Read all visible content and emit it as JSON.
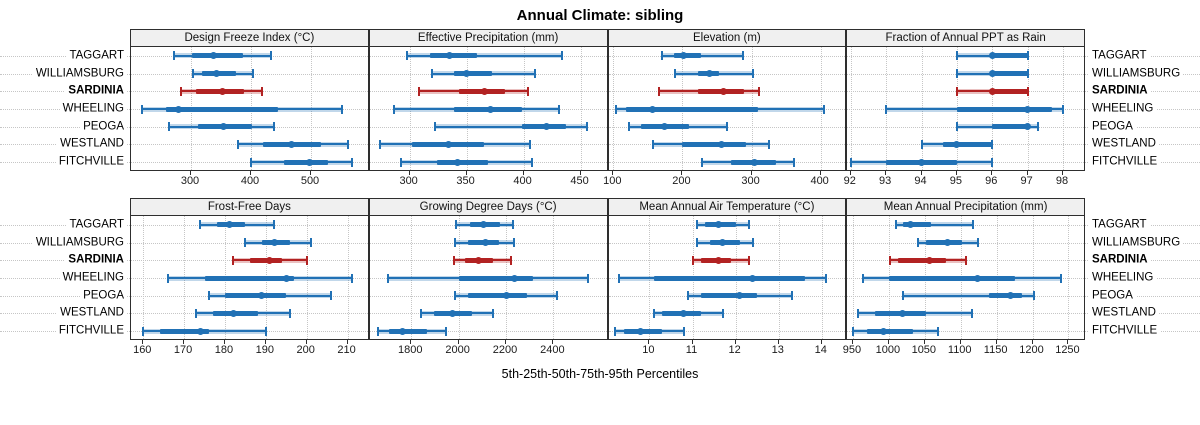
{
  "title": "Annual Climate: sibling",
  "caption": "5th-25th-50th-75th-95th Percentiles",
  "percentiles_order": [
    "p5",
    "p25",
    "p50",
    "p75",
    "p95"
  ],
  "sites": [
    {
      "label": "TAGGART",
      "bold": false
    },
    {
      "label": "WILLIAMSBURG",
      "bold": false
    },
    {
      "label": "SARDINIA",
      "bold": true
    },
    {
      "label": "WHEELING",
      "bold": false
    },
    {
      "label": "PEOGA",
      "bold": false
    },
    {
      "label": "WESTLAND",
      "bold": false
    },
    {
      "label": "FITCHVILLE",
      "bold": false
    }
  ],
  "colors": {
    "normal": "#2171b5",
    "normal_light": "rgba(33,113,181,0.28)",
    "highlight": "#b22222",
    "highlight_light": "rgba(178,34,34,0.28)",
    "header_bg": "#f0f0f0",
    "border": "#2e2e2e",
    "grid": "#c6c6c6"
  },
  "chart_data": [
    {
      "type": "percentile-interval",
      "title": "Design Freeze Index (°C)",
      "panel_row": 0,
      "xlim": [
        200,
        595
      ],
      "ticks": [
        300,
        400,
        500
      ],
      "series": [
        {
          "name": "TAGGART",
          "values": [
            272,
            302,
            338,
            387,
            433
          ]
        },
        {
          "name": "WILLIAMSBURG",
          "values": [
            303,
            318,
            342,
            375,
            404
          ]
        },
        {
          "name": "SARDINIA",
          "values": [
            284,
            309,
            353,
            389,
            418
          ]
        },
        {
          "name": "WHEELING",
          "values": [
            218,
            258,
            279,
            445,
            552
          ]
        },
        {
          "name": "PEOGA",
          "values": [
            264,
            312,
            354,
            402,
            439
          ]
        },
        {
          "name": "WESTLAND",
          "values": [
            378,
            420,
            468,
            516,
            561
          ]
        },
        {
          "name": "FITCHVILLE",
          "values": [
            400,
            455,
            497,
            528,
            568
          ]
        }
      ]
    },
    {
      "type": "percentile-interval",
      "title": "Effective Precipitation (mm)",
      "panel_row": 0,
      "xlim": [
        265,
        473
      ],
      "ticks": [
        300,
        350,
        400,
        450
      ],
      "series": [
        {
          "name": "TAGGART",
          "values": [
            298,
            318,
            335,
            359,
            434
          ]
        },
        {
          "name": "WILLIAMSBURG",
          "values": [
            320,
            339,
            350,
            372,
            410
          ]
        },
        {
          "name": "SARDINIA",
          "values": [
            308,
            343,
            366,
            384,
            404
          ]
        },
        {
          "name": "WHEELING",
          "values": [
            286,
            339,
            371,
            399,
            431
          ]
        },
        {
          "name": "PEOGA",
          "values": [
            322,
            399,
            420,
            437,
            456
          ]
        },
        {
          "name": "WESTLAND",
          "values": [
            274,
            302,
            334,
            365,
            406
          ]
        },
        {
          "name": "FITCHVILLE",
          "values": [
            292,
            324,
            342,
            369,
            407
          ]
        }
      ]
    },
    {
      "type": "percentile-interval",
      "title": "Elevation (m)",
      "panel_row": 0,
      "xlim": [
        93,
        436
      ],
      "ticks": [
        100,
        200,
        300,
        400
      ],
      "series": [
        {
          "name": "TAGGART",
          "values": [
            171,
            188,
            201,
            227,
            288
          ]
        },
        {
          "name": "WILLIAMSBURG",
          "values": [
            189,
            222,
            239,
            253,
            302
          ]
        },
        {
          "name": "SARDINIA",
          "values": [
            166,
            223,
            260,
            289,
            311
          ]
        },
        {
          "name": "WHEELING",
          "values": [
            104,
            118,
            157,
            310,
            405
          ]
        },
        {
          "name": "PEOGA",
          "values": [
            122,
            140,
            174,
            210,
            264
          ]
        },
        {
          "name": "WESTLAND",
          "values": [
            157,
            200,
            257,
            292,
            325
          ]
        },
        {
          "name": "FITCHVILLE",
          "values": [
            228,
            270,
            305,
            335,
            361
          ]
        }
      ]
    },
    {
      "type": "percentile-interval",
      "title": "Fraction of Annual PPT as Rain",
      "panel_row": 0,
      "xlim": [
        91.9,
        98.6
      ],
      "ticks": [
        92,
        93,
        94,
        95,
        96,
        97,
        98
      ],
      "series": [
        {
          "name": "TAGGART",
          "values": [
            95,
            96,
            96,
            97,
            97
          ]
        },
        {
          "name": "WILLIAMSBURG",
          "values": [
            95,
            96,
            96,
            97,
            97
          ]
        },
        {
          "name": "SARDINIA",
          "values": [
            95,
            96,
            96,
            97,
            97
          ]
        },
        {
          "name": "WHEELING",
          "values": [
            93,
            95,
            97,
            97.7,
            98
          ]
        },
        {
          "name": "PEOGA",
          "values": [
            95,
            96,
            97,
            97,
            97.3
          ]
        },
        {
          "name": "WESTLAND",
          "values": [
            94,
            94.6,
            95,
            96,
            96
          ]
        },
        {
          "name": "FITCHVILLE",
          "values": [
            92,
            93,
            94,
            95,
            96
          ]
        }
      ]
    },
    {
      "type": "percentile-interval",
      "title": "Frost-Free Days",
      "panel_row": 1,
      "xlim": [
        157,
        215
      ],
      "ticks": [
        160,
        170,
        180,
        190,
        200,
        210
      ],
      "series": [
        {
          "name": "TAGGART",
          "values": [
            174,
            178,
            181,
            185,
            192
          ]
        },
        {
          "name": "WILLIAMSBURG",
          "values": [
            185,
            189,
            192,
            196,
            201
          ]
        },
        {
          "name": "SARDINIA",
          "values": [
            182,
            186,
            191,
            194,
            200
          ]
        },
        {
          "name": "WHEELING",
          "values": [
            166,
            175,
            195,
            197,
            211
          ]
        },
        {
          "name": "PEOGA",
          "values": [
            176,
            180,
            189,
            195,
            206
          ]
        },
        {
          "name": "WESTLAND",
          "values": [
            173,
            177,
            182,
            188,
            196
          ]
        },
        {
          "name": "FITCHVILLE",
          "values": [
            160,
            164,
            174,
            176,
            190
          ]
        }
      ]
    },
    {
      "type": "percentile-interval",
      "title": "Growing Degree Days (°C)",
      "panel_row": 1,
      "xlim": [
        1625,
        2625
      ],
      "ticks": [
        1800,
        2000,
        2200,
        2400
      ],
      "series": [
        {
          "name": "TAGGART",
          "values": [
            1990,
            2050,
            2105,
            2175,
            2230
          ]
        },
        {
          "name": "WILLIAMSBURG",
          "values": [
            1985,
            2040,
            2115,
            2170,
            2235
          ]
        },
        {
          "name": "SARDINIA",
          "values": [
            1980,
            2025,
            2085,
            2145,
            2220
          ]
        },
        {
          "name": "WHEELING",
          "values": [
            1700,
            2000,
            2235,
            2315,
            2545
          ]
        },
        {
          "name": "PEOGA",
          "values": [
            1985,
            2040,
            2200,
            2290,
            2415
          ]
        },
        {
          "name": "WESTLAND",
          "values": [
            1840,
            1895,
            1975,
            2055,
            2145
          ]
        },
        {
          "name": "FITCHVILLE",
          "values": [
            1660,
            1705,
            1765,
            1865,
            1945
          ]
        }
      ]
    },
    {
      "type": "percentile-interval",
      "title": "Mean Annual Air Temperature (°C)",
      "panel_row": 1,
      "xlim": [
        9.05,
        14.55
      ],
      "ticks": [
        10,
        11,
        12,
        13,
        14
      ],
      "series": [
        {
          "name": "TAGGART",
          "values": [
            11.1,
            11.3,
            11.6,
            12.0,
            12.3
          ]
        },
        {
          "name": "WILLIAMSBURG",
          "values": [
            11.1,
            11.4,
            11.7,
            12.1,
            12.4
          ]
        },
        {
          "name": "SARDINIA",
          "values": [
            11.0,
            11.2,
            11.6,
            11.9,
            12.3
          ]
        },
        {
          "name": "WHEELING",
          "values": [
            9.3,
            10.1,
            12.4,
            13.6,
            14.1
          ]
        },
        {
          "name": "PEOGA",
          "values": [
            10.9,
            11.2,
            12.1,
            12.5,
            13.3
          ]
        },
        {
          "name": "WESTLAND",
          "values": [
            10.1,
            10.3,
            10.8,
            11.2,
            11.7
          ]
        },
        {
          "name": "FITCHVILLE",
          "values": [
            9.2,
            9.4,
            9.8,
            10.3,
            10.8
          ]
        }
      ]
    },
    {
      "type": "percentile-interval",
      "title": "Mean Annual Precipitation (mm)",
      "panel_row": 1,
      "xlim": [
        942,
        1272
      ],
      "ticks": [
        950,
        1000,
        1050,
        1100,
        1150,
        1200,
        1250
      ],
      "series": [
        {
          "name": "TAGGART",
          "values": [
            1010,
            1020,
            1030,
            1058,
            1117
          ]
        },
        {
          "name": "WILLIAMSBURG",
          "values": [
            1041,
            1051,
            1081,
            1102,
            1124
          ]
        },
        {
          "name": "SARDINIA",
          "values": [
            1002,
            1013,
            1057,
            1079,
            1107
          ]
        },
        {
          "name": "WHEELING",
          "values": [
            964,
            1000,
            1123,
            1176,
            1240
          ]
        },
        {
          "name": "PEOGA",
          "values": [
            1020,
            1140,
            1170,
            1186,
            1202
          ]
        },
        {
          "name": "WESTLAND",
          "values": [
            957,
            980,
            1019,
            1051,
            1116
          ]
        },
        {
          "name": "FITCHVILLE",
          "values": [
            950,
            970,
            992,
            1033,
            1069
          ]
        }
      ]
    }
  ]
}
